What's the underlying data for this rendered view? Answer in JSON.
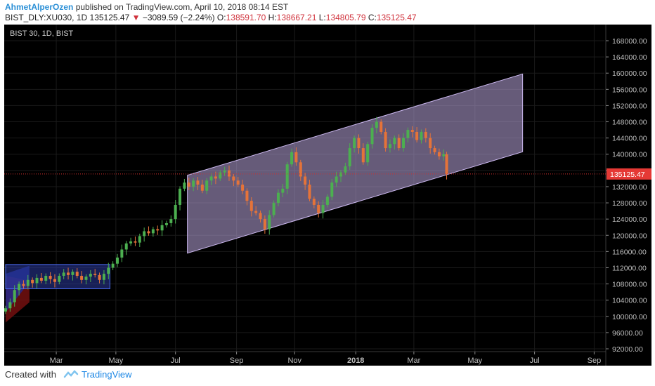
{
  "header": {
    "author": "AhmetAlperOzen",
    "published": " published on TradingView.com, April 10, 2018 08:14 EST",
    "symbol": "BIST_DLY:XU030, 1D",
    "last": "135125.47",
    "change": "−3089.59 (−2.24%)",
    "o_label": "O:",
    "o_value": "138591.70",
    "h_label": "H:",
    "h_value": "138667.21",
    "l_label": "L:",
    "l_value": "134805.79",
    "c_label": "C:",
    "c_value": "135125.47"
  },
  "footer": {
    "created_with": "Created with",
    "brand": "TradingView"
  },
  "colors": {
    "up": "#4caf50",
    "down": "#e57339",
    "channel": "#b9a6dc",
    "price_line": "#d32f2f",
    "grid": "#1a1a1a",
    "box": "#2b3a9e"
  },
  "chart_data": {
    "type": "candlestick",
    "title": "BIST 30, 1D, BIST",
    "last_price_label": "135125.47",
    "ylim": [
      90000,
      170000
    ],
    "y_ticks": [
      "92000.00",
      "96000.00",
      "100000.00",
      "104000.00",
      "108000.00",
      "112000.00",
      "116000.00",
      "120000.00",
      "124000.00",
      "128000.00",
      "132000.00",
      "136000.00",
      "140000.00",
      "144000.00",
      "148000.00",
      "152000.00",
      "156000.00",
      "160000.00",
      "164000.00",
      "168000.00"
    ],
    "x_ticks": [
      "Mar",
      "May",
      "Jul",
      "Sep",
      "Nov",
      "2018",
      "Mar",
      "May",
      "Jul",
      "Sep"
    ],
    "x_tick_pos": [
      1.7,
      3.7,
      5.7,
      7.75,
      9.7,
      11.75,
      13.7,
      15.75,
      17.75,
      19.75
    ],
    "closes": [
      [
        0.0,
        102000
      ],
      [
        0.15,
        103500
      ],
      [
        0.3,
        106500
      ],
      [
        0.45,
        108000
      ],
      [
        0.6,
        107500
      ],
      [
        0.75,
        109000
      ],
      [
        0.9,
        108200
      ],
      [
        1.05,
        109500
      ],
      [
        1.2,
        108800
      ],
      [
        1.35,
        110000
      ],
      [
        1.5,
        109200
      ],
      [
        1.65,
        108500
      ],
      [
        1.8,
        110000
      ],
      [
        1.95,
        110800
      ],
      [
        2.1,
        110200
      ],
      [
        2.25,
        111000
      ],
      [
        2.4,
        110000
      ],
      [
        2.55,
        109000
      ],
      [
        2.7,
        109800
      ],
      [
        2.85,
        110500
      ],
      [
        3.0,
        110200
      ],
      [
        3.15,
        109000
      ],
      [
        3.3,
        110500
      ],
      [
        3.45,
        112000
      ],
      [
        3.6,
        113000
      ],
      [
        3.75,
        114500
      ],
      [
        3.9,
        116500
      ],
      [
        4.05,
        118000
      ],
      [
        4.2,
        118500
      ],
      [
        4.35,
        118200
      ],
      [
        4.5,
        119800
      ],
      [
        4.65,
        121000
      ],
      [
        4.8,
        120500
      ],
      [
        4.95,
        121500
      ],
      [
        5.1,
        121200
      ],
      [
        5.25,
        122500
      ],
      [
        5.4,
        123000
      ],
      [
        5.55,
        124000
      ],
      [
        5.7,
        127500
      ],
      [
        5.85,
        131500
      ],
      [
        6.0,
        133000
      ],
      [
        6.15,
        132000
      ],
      [
        6.3,
        133500
      ],
      [
        6.45,
        132500
      ],
      [
        6.6,
        131000
      ],
      [
        6.75,
        133500
      ],
      [
        6.9,
        134500
      ],
      [
        7.05,
        134000
      ],
      [
        7.2,
        135500
      ],
      [
        7.35,
        136000
      ],
      [
        7.5,
        134500
      ],
      [
        7.65,
        133500
      ],
      [
        7.8,
        132500
      ],
      [
        7.95,
        131000
      ],
      [
        8.1,
        128500
      ],
      [
        8.25,
        126000
      ],
      [
        8.4,
        125500
      ],
      [
        8.55,
        124000
      ],
      [
        8.7,
        121500
      ],
      [
        8.85,
        125000
      ],
      [
        9.0,
        128000
      ],
      [
        9.15,
        130500
      ],
      [
        9.3,
        131500
      ],
      [
        9.45,
        137500
      ],
      [
        9.6,
        140500
      ],
      [
        9.75,
        138000
      ],
      [
        9.9,
        134500
      ],
      [
        10.05,
        132500
      ],
      [
        10.2,
        129000
      ],
      [
        10.35,
        127500
      ],
      [
        10.5,
        125500
      ],
      [
        10.65,
        127500
      ],
      [
        10.8,
        129500
      ],
      [
        10.95,
        133000
      ],
      [
        11.1,
        134500
      ],
      [
        11.25,
        135500
      ],
      [
        11.4,
        137000
      ],
      [
        11.55,
        141500
      ],
      [
        11.7,
        144000
      ],
      [
        11.85,
        141500
      ],
      [
        12.0,
        138000
      ],
      [
        12.15,
        142500
      ],
      [
        12.3,
        146500
      ],
      [
        12.45,
        148000
      ],
      [
        12.6,
        145500
      ],
      [
        12.75,
        141500
      ],
      [
        12.9,
        142500
      ],
      [
        13.05,
        144000
      ],
      [
        13.2,
        141500
      ],
      [
        13.35,
        144000
      ],
      [
        13.5,
        146000
      ],
      [
        13.65,
        145500
      ],
      [
        13.8,
        143500
      ],
      [
        13.95,
        145500
      ],
      [
        14.1,
        144000
      ],
      [
        14.25,
        141500
      ],
      [
        14.4,
        140500
      ],
      [
        14.55,
        139500
      ],
      [
        14.7,
        140000
      ],
      [
        14.8,
        135125
      ]
    ],
    "channel": {
      "x1": 6.1,
      "x2": 17.35,
      "upper1": 134800,
      "upper2": 159800,
      "lower1": 115600,
      "lower2": 140600
    },
    "box": {
      "x1": 0.0,
      "x2": 3.5,
      "y1": 106800,
      "y2": 112800
    }
  }
}
